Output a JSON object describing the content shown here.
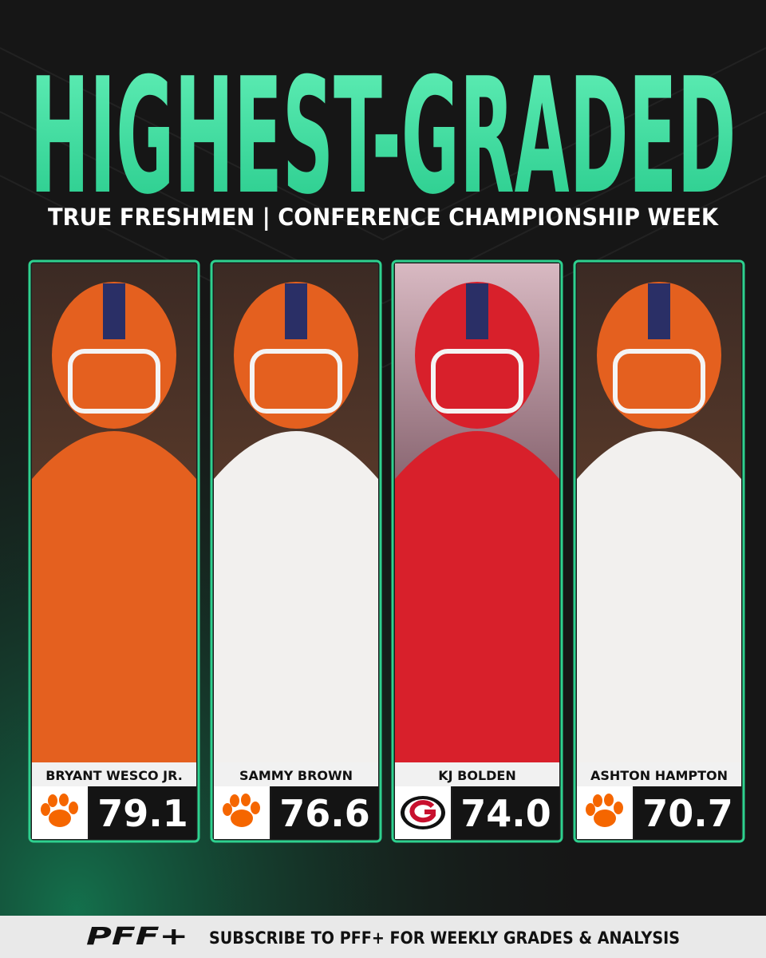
{
  "header": {
    "title": "HIGHEST-GRADED",
    "subtitle": "TRUE FRESHMEN | CONFERENCE CHAMPIONSHIP WEEK"
  },
  "players": [
    {
      "name": "BRYANT WESCO JR.",
      "grade": "79.1"
    },
    {
      "name": "SAMMY BROWN",
      "grade": "76.6"
    },
    {
      "name": "KJ BOLDEN",
      "grade": "74.0"
    },
    {
      "name": "ASHTON HAMPTON",
      "grade": "70.7"
    }
  ],
  "footer": {
    "logo": "PFF+",
    "text": "SUBSCRIBE TO PFF+ FOR WEEKLY GRADES & ANALYSIS"
  }
}
